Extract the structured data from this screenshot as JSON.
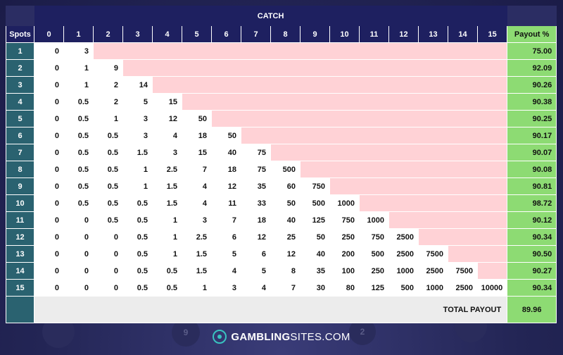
{
  "table": {
    "catch_title": "CATCH",
    "spots_label": "Spots",
    "payout_label": "Payout %",
    "catch_headers": [
      "0",
      "1",
      "2",
      "3",
      "4",
      "5",
      "6",
      "7",
      "8",
      "9",
      "10",
      "11",
      "12",
      "13",
      "14",
      "15"
    ],
    "rows": [
      {
        "spots": "1",
        "values": [
          "0",
          "3"
        ],
        "payout": "75.00"
      },
      {
        "spots": "2",
        "values": [
          "0",
          "1",
          "9"
        ],
        "payout": "92.09"
      },
      {
        "spots": "3",
        "values": [
          "0",
          "1",
          "2",
          "14"
        ],
        "payout": "90.26"
      },
      {
        "spots": "4",
        "values": [
          "0",
          "0.5",
          "2",
          "5",
          "15"
        ],
        "payout": "90.38"
      },
      {
        "spots": "5",
        "values": [
          "0",
          "0.5",
          "1",
          "3",
          "12",
          "50"
        ],
        "payout": "90.25"
      },
      {
        "spots": "6",
        "values": [
          "0",
          "0.5",
          "0.5",
          "3",
          "4",
          "18",
          "50"
        ],
        "payout": "90.17"
      },
      {
        "spots": "7",
        "values": [
          "0",
          "0.5",
          "0.5",
          "1.5",
          "3",
          "15",
          "40",
          "75"
        ],
        "payout": "90.07"
      },
      {
        "spots": "8",
        "values": [
          "0",
          "0.5",
          "0.5",
          "1",
          "2.5",
          "7",
          "18",
          "75",
          "500"
        ],
        "payout": "90.08"
      },
      {
        "spots": "9",
        "values": [
          "0",
          "0.5",
          "0.5",
          "1",
          "1.5",
          "4",
          "12",
          "35",
          "60",
          "750"
        ],
        "payout": "90.81"
      },
      {
        "spots": "10",
        "values": [
          "0",
          "0.5",
          "0.5",
          "0.5",
          "1.5",
          "4",
          "11",
          "33",
          "50",
          "500",
          "1000"
        ],
        "payout": "98.72"
      },
      {
        "spots": "11",
        "values": [
          "0",
          "0",
          "0.5",
          "0.5",
          "1",
          "3",
          "7",
          "18",
          "40",
          "125",
          "750",
          "1000"
        ],
        "payout": "90.12"
      },
      {
        "spots": "12",
        "values": [
          "0",
          "0",
          "0",
          "0.5",
          "1",
          "2.5",
          "6",
          "12",
          "25",
          "50",
          "250",
          "750",
          "2500"
        ],
        "payout": "90.34"
      },
      {
        "spots": "13",
        "values": [
          "0",
          "0",
          "0",
          "0.5",
          "1",
          "1.5",
          "5",
          "6",
          "12",
          "40",
          "200",
          "500",
          "2500",
          "7500"
        ],
        "payout": "90.50"
      },
      {
        "spots": "14",
        "values": [
          "0",
          "0",
          "0",
          "0.5",
          "0.5",
          "1.5",
          "4",
          "5",
          "8",
          "35",
          "100",
          "250",
          "1000",
          "2500",
          "7500"
        ],
        "payout": "90.27"
      },
      {
        "spots": "15",
        "values": [
          "0",
          "0",
          "0",
          "0.5",
          "0.5",
          "1",
          "3",
          "4",
          "7",
          "30",
          "80",
          "125",
          "500",
          "1000",
          "2500",
          "10000"
        ],
        "payout": "90.34"
      }
    ],
    "total_label": "TOTAL PAYOUT",
    "total_value": "89.96"
  },
  "brand": {
    "icon": "gs-logo-icon",
    "name_bold": "GAMBLING",
    "name_rest": "SITES.COM"
  },
  "decor_balls": [
    "9",
    "2"
  ],
  "colors": {
    "header_navy": "#1e2060",
    "spot_teal": "#2a6270",
    "payout_green": "#8ddb73",
    "empty_pink": "#ffd2d6"
  }
}
